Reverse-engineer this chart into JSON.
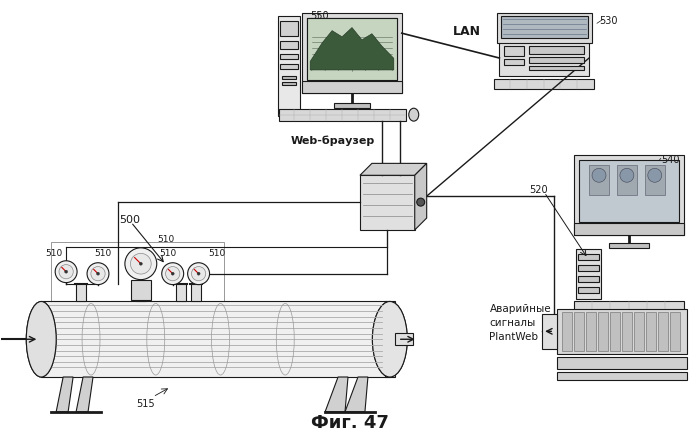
{
  "background_color": "#ffffff",
  "fig_label": "Фиг. 47",
  "web_label": "Web-браузер",
  "alarm_label": "Аварийные\nсигналы\nPlantWeb",
  "lan_label": "LAN",
  "label_500": "500",
  "label_510": "510",
  "label_515": "515",
  "label_520": "520",
  "label_530": "530",
  "label_540": "540",
  "label_550": "550"
}
